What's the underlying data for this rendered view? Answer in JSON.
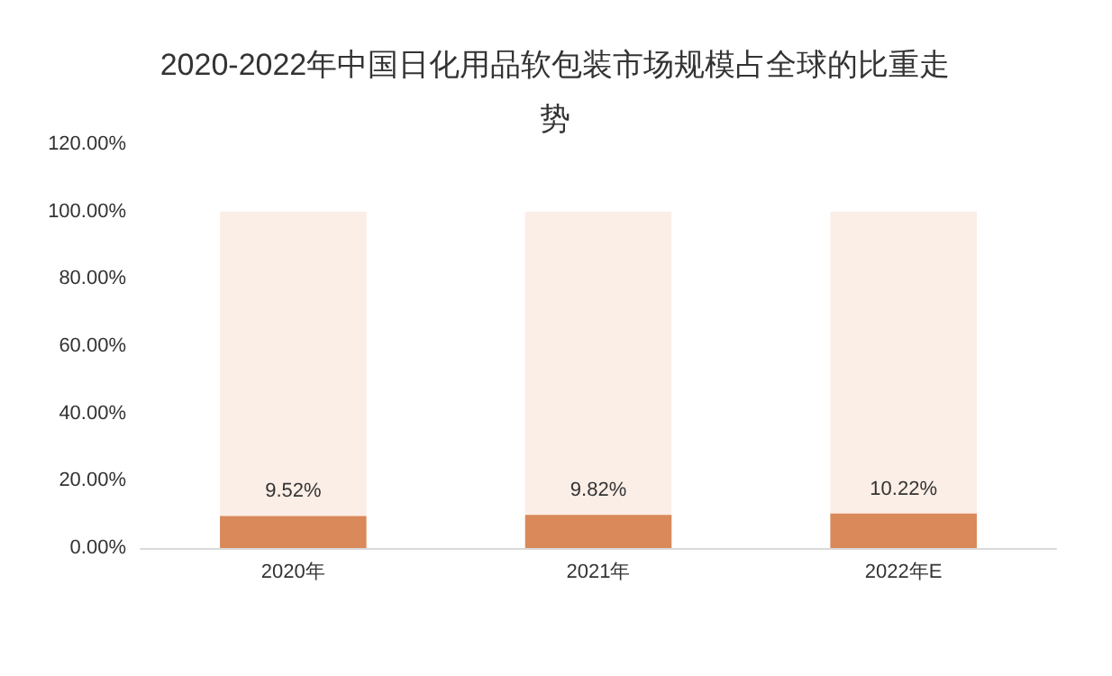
{
  "chart_data": {
    "type": "bar",
    "title": "2020-2022年中国日化用品软包装市场规模占全球的比重走势",
    "categories": [
      "2020年",
      "2021年",
      "2022年E"
    ],
    "stacked": true,
    "series": [
      {
        "color": "#d9895a",
        "values": [
          9.52,
          9.82,
          10.22
        ],
        "value_labels": [
          "9.52%",
          "9.82%",
          "10.22%"
        ]
      },
      {
        "color": "#fbeee6",
        "values": [
          90.48,
          90.18,
          89.78
        ]
      }
    ],
    "ylim": [
      0,
      120
    ],
    "yticks": [
      {
        "value": 0,
        "label": "0.00%"
      },
      {
        "value": 20,
        "label": "20.00%"
      },
      {
        "value": 40,
        "label": "40.00%"
      },
      {
        "value": 60,
        "label": "60.00%"
      },
      {
        "value": 80,
        "label": "80.00%"
      },
      {
        "value": 100,
        "label": "100.00%"
      },
      {
        "value": 120,
        "label": "120.00%"
      }
    ],
    "grid": false
  }
}
